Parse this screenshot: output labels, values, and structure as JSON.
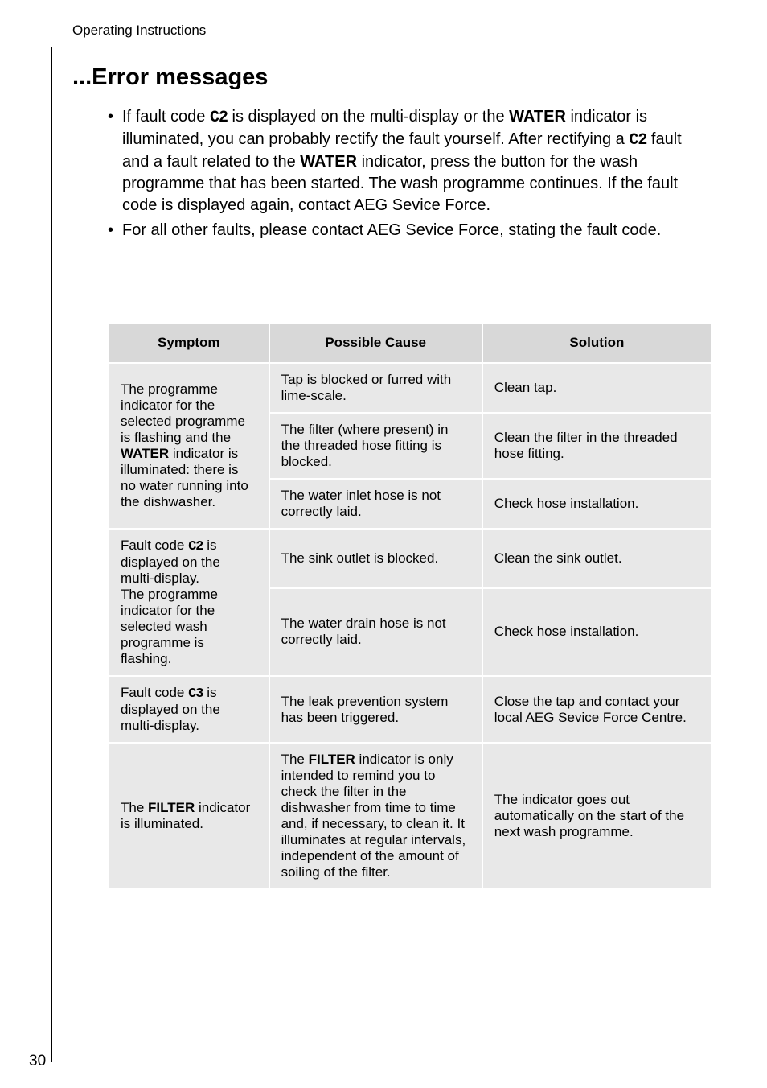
{
  "header": "Operating Instructions",
  "section_title": "...Error messages",
  "code_c2": "C2",
  "code_c3": "C3",
  "bullets": [
    {
      "parts": [
        {
          "t": "text",
          "v": "If fault code "
        },
        {
          "t": "code",
          "v": "C2"
        },
        {
          "t": "text",
          "v": "  is displayed on the multi-display or the "
        },
        {
          "t": "bold",
          "v": "WATER"
        },
        {
          "t": "text",
          "v": " indicator is illuminated, you can probably rectify the fault yourself. After rectifying a "
        },
        {
          "t": "code",
          "v": "C2"
        },
        {
          "t": "text",
          "v": " fault and a fault related to the "
        },
        {
          "t": "bold",
          "v": "WATER"
        },
        {
          "t": "text",
          "v": " indicator, press the button for the wash programme that has been started. The wash programme continues. If the fault code is displayed again, contact AEG Sevice Force."
        }
      ]
    },
    {
      "parts": [
        {
          "t": "text",
          "v": "For all other faults, please contact AEG Sevice Force, stating the fault code."
        }
      ]
    }
  ],
  "table": {
    "columns": [
      "Symptom",
      "Possible Cause",
      "Solution"
    ],
    "groups": [
      {
        "symptom_parts": [
          {
            "t": "text",
            "v": "The programme indicator for the selected programme is flashing and the "
          },
          {
            "t": "bold",
            "v": "WATER"
          },
          {
            "t": "text",
            "v": " indicator is illuminated: there is no water running into the dishwasher."
          }
        ],
        "rows": [
          {
            "cause": "Tap is blocked or furred with lime-scale.",
            "solution": "Clean tap."
          },
          {
            "cause": "The filter (where present) in the threaded hose fitting is blocked.",
            "solution": "Clean the filter in the threaded hose fitting."
          },
          {
            "cause": "The water inlet hose is not correctly laid.",
            "solution": "Check hose installation."
          }
        ]
      },
      {
        "symptom_parts": [
          {
            "t": "text",
            "v": "Fault code "
          },
          {
            "t": "code",
            "v": "C2"
          },
          {
            "t": "text",
            "v": " is displayed on the multi-display.\nThe programme indicator for the selected wash programme is flashing."
          }
        ],
        "rows": [
          {
            "cause": "The sink outlet is blocked.",
            "solution": "Clean the sink outlet."
          },
          {
            "cause": "The water drain hose is not correctly laid.",
            "solution": "Check hose installation."
          }
        ]
      },
      {
        "symptom_parts": [
          {
            "t": "text",
            "v": "Fault code "
          },
          {
            "t": "code",
            "v": "C3"
          },
          {
            "t": "text",
            "v": " is displayed on the multi-display."
          }
        ],
        "rows": [
          {
            "cause": "The leak prevention system has been triggered.",
            "solution": "Close the tap and contact your local AEG Sevice Force Centre."
          }
        ]
      },
      {
        "symptom_parts": [
          {
            "t": "text",
            "v": "The "
          },
          {
            "t": "bold",
            "v": "FILTER"
          },
          {
            "t": "text",
            "v": " indicator is illuminated."
          }
        ],
        "rows": [
          {
            "cause_parts": [
              {
                "t": "text",
                "v": "The "
              },
              {
                "t": "bold",
                "v": "FILTER"
              },
              {
                "t": "text",
                "v": " indicator is only intended to remind you to check the filter in the dishwasher from time to time and, if necessary, to clean it. It illuminates at regular intervals, independent of the amount of soiling of the filter."
              }
            ],
            "solution": "The indicator goes out automatically on the start of the next wash programme."
          }
        ]
      }
    ]
  },
  "page_number": "30"
}
